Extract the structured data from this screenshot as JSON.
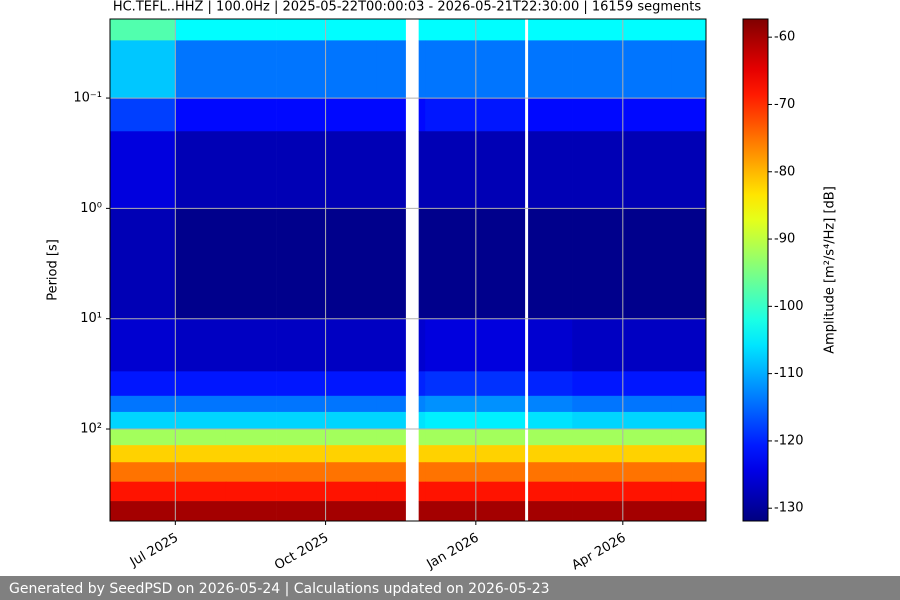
{
  "chart_data": {
    "type": "heatmap",
    "title": "HC.TEFL..HHZ | 100.0Hz | 2025-05-22T00:00:03 - 2026-05-21T22:30:00 | 16159 segments",
    "y_label": "Period [s]",
    "colorbar_label": "Amplitude [m²/s⁴/Hz] [dB]",
    "x": [
      "2025-05-22",
      "2025-07-01",
      "2025-08-01",
      "2025-09-01",
      "2025-10-01",
      "2025-11-01",
      "2025-11-19",
      "2025-11-27",
      "2025-12-01",
      "2026-01-01",
      "2026-01-31",
      "2026-02-02",
      "2026-03-01",
      "2026-04-01",
      "2026-05-01"
    ],
    "xlim": [
      "2025-05-22T00:00:03",
      "2026-05-21T22:30:00"
    ],
    "xticks": [
      {
        "value": "2025-07-01",
        "label": "Jul 2025"
      },
      {
        "value": "2025-10-01",
        "label": "Oct 2025"
      },
      {
        "value": "2026-01-01",
        "label": "Jan 2026"
      },
      {
        "value": "2026-04-01",
        "label": "Apr 2026"
      }
    ],
    "y_bins": [
      0.0192,
      0.03,
      0.1,
      0.2,
      1,
      10,
      30,
      50,
      70,
      100,
      140,
      200,
      300,
      450,
      682
    ],
    "ylim": [
      0.0192,
      682
    ],
    "y_log": true,
    "y_inverted": true,
    "yticks": [
      {
        "value": 0.1,
        "label": "10⁻¹"
      },
      {
        "value": 1,
        "label": "10⁰"
      },
      {
        "value": 10,
        "label": "10¹"
      },
      {
        "value": 100,
        "label": "10²"
      }
    ],
    "values": [
      [
        -98,
        -104,
        -104,
        -104,
        -104,
        -104,
        null,
        -104,
        -104,
        -104,
        null,
        -104,
        -104,
        -104,
        -104
      ],
      [
        -108,
        -114,
        -114,
        -114,
        -114,
        -114,
        null,
        -114,
        -114,
        -114,
        null,
        -114,
        -114,
        -114,
        -114
      ],
      [
        -118,
        -122,
        -122,
        -122,
        -122,
        -122,
        null,
        -122,
        -121,
        -121,
        null,
        -122,
        -122,
        -122,
        -122
      ],
      [
        -125,
        -128,
        -128,
        -128,
        -128,
        -128,
        null,
        -128,
        -128,
        -128,
        null,
        -128,
        -128,
        -128,
        -128
      ],
      [
        -128,
        -131,
        -131,
        -131,
        -131,
        -131,
        null,
        -131,
        -131,
        -131,
        null,
        -131,
        -131,
        -131,
        -131
      ],
      [
        -126,
        -127,
        -127,
        -127,
        -127,
        -127,
        null,
        -126,
        -125,
        -125,
        null,
        -126,
        -127,
        -127,
        -127
      ],
      [
        -121,
        -121,
        -121,
        -121,
        -121,
        -121,
        null,
        -120,
        -119,
        -119,
        null,
        -120,
        -121,
        -121,
        -121
      ],
      [
        -114,
        -114,
        -114,
        -114,
        -114,
        -114,
        null,
        -113,
        -112,
        -112,
        null,
        -113,
        -114,
        -114,
        -114
      ],
      [
        -107,
        -107,
        -107,
        -107,
        -107,
        -107,
        null,
        -106,
        -105,
        -105,
        null,
        -106,
        -107,
        -107,
        -107
      ],
      [
        -92,
        -92,
        -92,
        -92,
        -92,
        -92,
        null,
        -92,
        -92,
        -92,
        null,
        -92,
        -92,
        -92,
        -92
      ],
      [
        -82,
        -82,
        -82,
        -82,
        -82,
        -82,
        null,
        -82,
        -82,
        -82,
        null,
        -82,
        -82,
        -82,
        -82
      ],
      [
        -75,
        -75,
        -75,
        -75,
        -75,
        -75,
        null,
        -75,
        -75,
        -75,
        null,
        -75,
        -75,
        -75,
        -75
      ],
      [
        -68,
        -68,
        -68,
        -68,
        -68,
        -68,
        null,
        -68,
        -68,
        -68,
        null,
        -68,
        -68,
        -68,
        -68
      ],
      [
        -60,
        -60,
        -60,
        -60,
        -60,
        -60,
        null,
        -60,
        -60,
        -60,
        null,
        -60,
        -60,
        -60,
        -60
      ]
    ],
    "colormap": "jet",
    "clim": [
      -131.9,
      -57.3
    ],
    "cticks": [
      -130,
      -120,
      -110,
      -100,
      -90,
      -80,
      -70,
      -60
    ],
    "grid": true,
    "grid_color": "#b0b0b0"
  },
  "footer": "Generated by SeedPSD on 2026-05-24 | Calculations updated on 2026-05-23"
}
